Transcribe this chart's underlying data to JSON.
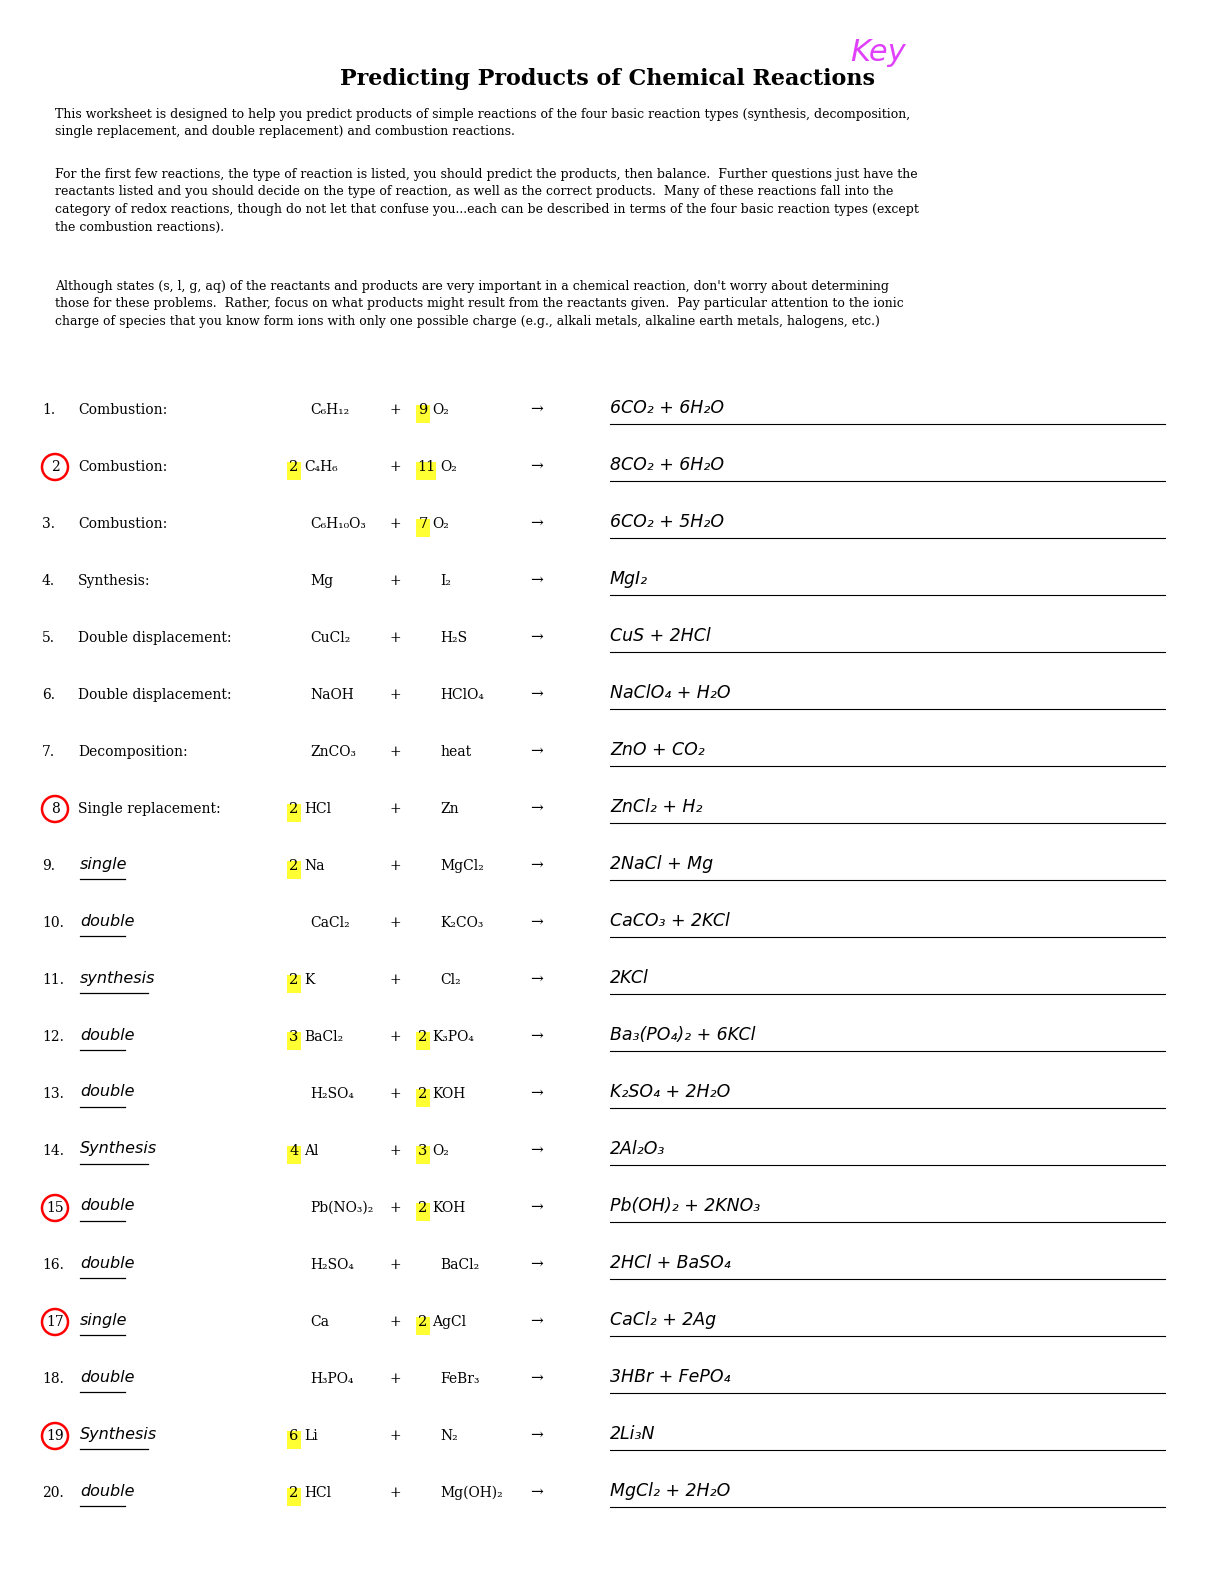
{
  "title": "Predicting Products of Chemical Reactions",
  "key_text": "Key",
  "para1": "This worksheet is designed to help you predict products of simple reactions of the four basic reaction types (synthesis, decomposition,\nsingle replacement, and double replacement) and combustion reactions.",
  "para2": "For the first few reactions, the type of reaction is listed, you should predict the products, then balance.  Further questions just have the\nreactants listed and you should decide on the type of reaction, as well as the correct products.  Many of these reactions fall into the\ncategory of redox reactions, though do not let that confuse you...each can be described in terms of the four basic reaction types (except\nthe combustion reactions).",
  "para3": "Although states (s, l, g, aq) of the reactants and products are very important in a chemical reaction, don't worry about determining\nthose for these problems.  Rather, focus on what products might result from the reactants given.  Pay particular attention to the ionic\ncharge of species that you know form ions with only one possible charge (e.g., alkali metals, alkaline earth metals, halogens, etc.)",
  "rows": [
    {
      "num": "1.",
      "circle": false,
      "type": "Combustion:",
      "type_hand": false,
      "r1": "C₆H₁₂",
      "r1_hi": false,
      "plus": "+",
      "coeff2": "9",
      "coeff2_hi": true,
      "r2": "O₂",
      "arrow": "→",
      "answer": "6CO₂ + 6H₂O"
    },
    {
      "num": "2.",
      "circle": true,
      "type": "Combustion:",
      "type_hand": false,
      "r1": "C₄H₆",
      "r1_coeff": "2",
      "r1_hi": true,
      "plus": "+",
      "coeff2": "11",
      "coeff2_hi": true,
      "r2": "O₂",
      "arrow": "→",
      "answer": "8CO₂ + 6H₂O"
    },
    {
      "num": "3.",
      "circle": false,
      "type": "Combustion:",
      "type_hand": false,
      "r1": "C₆H₁₀O₃",
      "r1_hi": false,
      "plus": "+",
      "coeff2": "7",
      "coeff2_hi": true,
      "r2": "O₂",
      "arrow": "→",
      "answer": "6CO₂ + 5H₂O"
    },
    {
      "num": "4.",
      "circle": false,
      "type": "Synthesis:",
      "type_hand": false,
      "r1": "Mg",
      "r1_hi": false,
      "plus": "+",
      "coeff2": "",
      "coeff2_hi": false,
      "r2": "I₂",
      "arrow": "→",
      "answer": "MgI₂"
    },
    {
      "num": "5.",
      "circle": false,
      "type": "Double displacement:",
      "type_hand": false,
      "r1": "CuCl₂",
      "r1_hi": false,
      "plus": "+",
      "coeff2": "",
      "coeff2_hi": false,
      "r2": "H₂S",
      "arrow": "→",
      "answer": "CuS + 2HCl"
    },
    {
      "num": "6.",
      "circle": false,
      "type": "Double displacement:",
      "type_hand": false,
      "r1": "NaOH",
      "r1_hi": false,
      "plus": "+",
      "coeff2": "",
      "coeff2_hi": false,
      "r2": "HClO₄",
      "arrow": "→",
      "answer": "NaClO₄ + H₂O"
    },
    {
      "num": "7.",
      "circle": false,
      "type": "Decomposition:",
      "type_hand": false,
      "r1": "ZnCO₃",
      "r1_hi": false,
      "plus": "+",
      "coeff2": "",
      "coeff2_hi": false,
      "r2": "heat",
      "arrow": "→",
      "answer": "ZnO + CO₂"
    },
    {
      "num": "8.",
      "circle": true,
      "type": "Single replacement:",
      "type_hand": false,
      "r1": "HCl",
      "r1_coeff": "2",
      "r1_hi": true,
      "plus": "+",
      "coeff2": "",
      "coeff2_hi": false,
      "r2": "Zn",
      "arrow": "→",
      "answer": "ZnCl₂ + H₂"
    },
    {
      "num": "9.",
      "circle": false,
      "type": "single",
      "type_hand": true,
      "r1": "Na",
      "r1_coeff": "2",
      "r1_hi": true,
      "plus": "+",
      "coeff2": "",
      "coeff2_hi": false,
      "r2": "MgCl₂",
      "arrow": "→",
      "answer": "2NaCl + Mg"
    },
    {
      "num": "10.",
      "circle": false,
      "type": "double",
      "type_hand": true,
      "r1": "CaCl₂",
      "r1_hi": false,
      "plus": "+",
      "coeff2": "",
      "coeff2_hi": false,
      "r2": "K₂CO₃",
      "arrow": "→",
      "answer": "CaCO₃ + 2KCl"
    },
    {
      "num": "11.",
      "circle": false,
      "type": "synthesis",
      "type_hand": true,
      "r1": "K",
      "r1_coeff": "2",
      "r1_hi": true,
      "plus": "+",
      "coeff2": "",
      "coeff2_hi": false,
      "r2": "Cl₂",
      "arrow": "→",
      "answer": "2KCl"
    },
    {
      "num": "12.",
      "circle": false,
      "type": "double",
      "type_hand": true,
      "r1": "BaCl₂",
      "r1_coeff": "3",
      "r1_hi": true,
      "plus": "+",
      "coeff2": "2",
      "coeff2_hi": true,
      "r2": "K₃PO₄",
      "arrow": "→",
      "answer": "Ba₃(PO₄)₂ + 6KCl"
    },
    {
      "num": "13.",
      "circle": false,
      "type": "double",
      "type_hand": true,
      "r1": "H₂SO₄",
      "r1_hi": false,
      "plus": "+",
      "coeff2": "2",
      "coeff2_hi": true,
      "r2": "KOH",
      "arrow": "→",
      "answer": "K₂SO₄ + 2H₂O"
    },
    {
      "num": "14.",
      "circle": false,
      "type": "Synthesis",
      "type_hand": true,
      "r1": "Al",
      "r1_coeff": "4",
      "r1_hi": true,
      "plus": "+",
      "coeff2": "3",
      "coeff2_hi": true,
      "r2": "O₂",
      "arrow": "→",
      "answer": "2Al₂O₃"
    },
    {
      "num": "15.",
      "circle": true,
      "type": "double",
      "type_hand": true,
      "r1": "Pb(NO₃)₂",
      "r1_hi": false,
      "plus": "+",
      "coeff2": "2",
      "coeff2_hi": true,
      "r2": "KOH",
      "arrow": "→",
      "answer": "Pb(OH)₂ + 2KNO₃"
    },
    {
      "num": "16.",
      "circle": false,
      "type": "double",
      "type_hand": true,
      "r1": "H₂SO₄",
      "r1_hi": false,
      "plus": "+",
      "coeff2": "",
      "coeff2_hi": false,
      "r2": "BaCl₂",
      "arrow": "→",
      "answer": "2HCl + BaSO₄"
    },
    {
      "num": "17.",
      "circle": true,
      "type": "single",
      "type_hand": true,
      "r1": "Ca",
      "r1_hi": false,
      "plus": "+",
      "coeff2": "2",
      "coeff2_hi": true,
      "r2": "AgCl",
      "arrow": "→",
      "answer": "CaCl₂ + 2Ag"
    },
    {
      "num": "18.",
      "circle": false,
      "type": "double",
      "type_hand": true,
      "r1": "H₃PO₄",
      "r1_hi": false,
      "plus": "+",
      "coeff2": "",
      "coeff2_hi": false,
      "r2": "FeBr₃",
      "arrow": "→",
      "answer": "3HBr + FePO₄"
    },
    {
      "num": "19.",
      "circle": true,
      "type": "Synthesis",
      "type_hand": true,
      "r1": "Li",
      "r1_coeff": "6",
      "r1_hi": true,
      "plus": "+",
      "coeff2": "",
      "coeff2_hi": false,
      "r2": "N₂",
      "arrow": "→",
      "answer": "2Li₃N"
    },
    {
      "num": "20.",
      "circle": false,
      "type": "double",
      "type_hand": true,
      "r1": "HCl",
      "r1_coeff": "2",
      "r1_hi": true,
      "plus": "+",
      "coeff2": "",
      "coeff2_hi": false,
      "r2": "Mg(OH)₂",
      "arrow": "→",
      "answer": "MgCl₂ + 2H₂O"
    }
  ]
}
